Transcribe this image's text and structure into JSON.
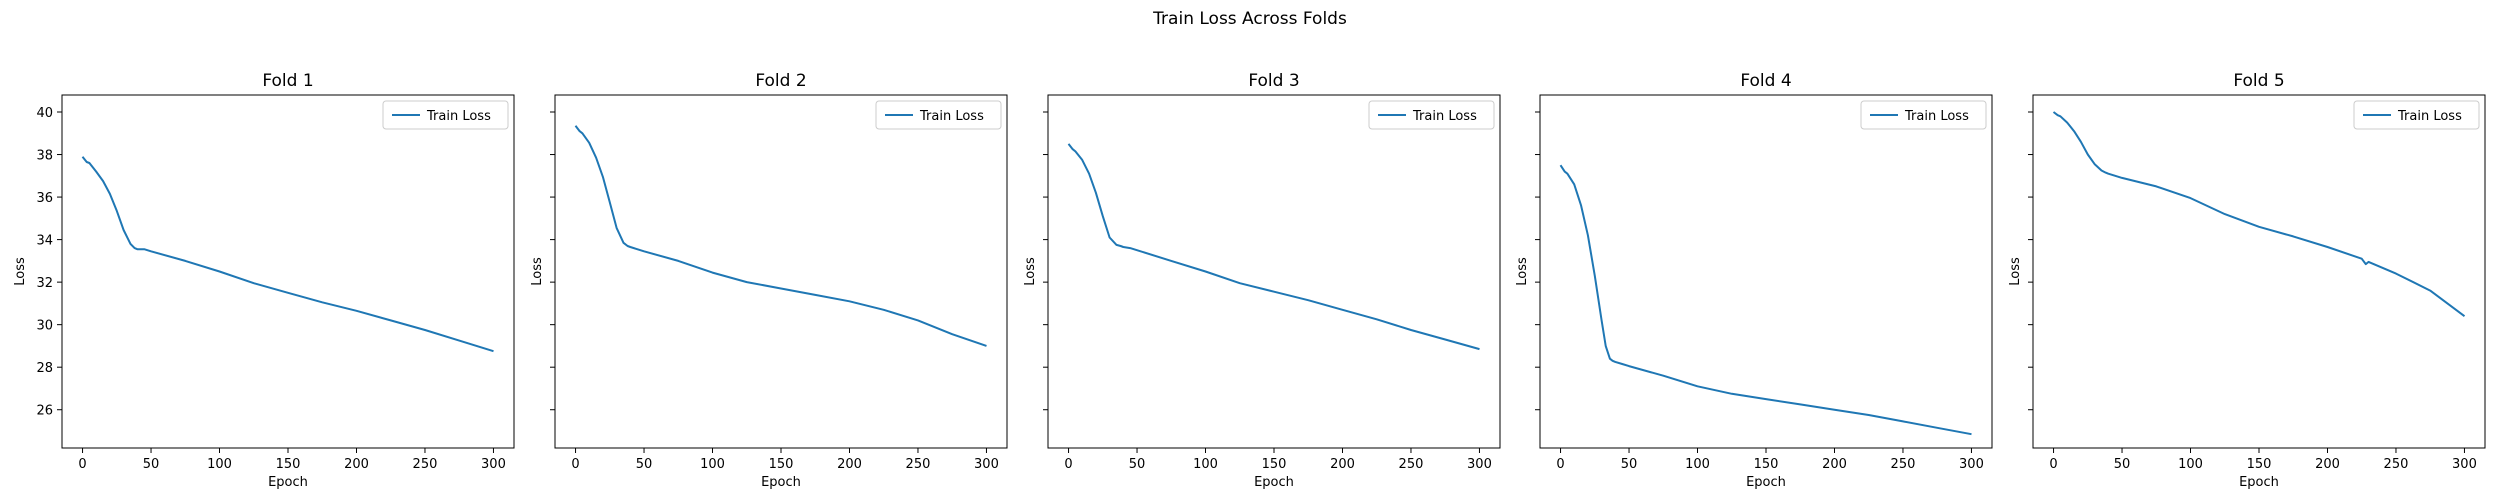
{
  "figure": {
    "suptitle": "Train Loss Across Folds"
  },
  "chart_data": [
    {
      "type": "line",
      "title": "Fold 1",
      "xlabel": "Epoch",
      "ylabel": "Loss",
      "xlim": [
        -15,
        315
      ],
      "ylim": [
        24.2,
        40.8
      ],
      "xticks": [
        0,
        50,
        100,
        150,
        200,
        250,
        300
      ],
      "yticks": [
        26,
        28,
        30,
        32,
        34,
        36,
        38,
        40
      ],
      "legend": "upper right",
      "grid": false,
      "series": [
        {
          "name": "Train Loss",
          "color": "#1f77b4",
          "x": [
            0,
            3,
            5,
            10,
            15,
            20,
            25,
            30,
            35,
            38,
            40,
            45,
            50,
            75,
            100,
            125,
            150,
            175,
            200,
            225,
            250,
            275,
            300
          ],
          "y": [
            37.9,
            37.65,
            37.6,
            37.2,
            36.75,
            36.15,
            35.35,
            34.45,
            33.8,
            33.6,
            33.55,
            33.55,
            33.45,
            33.0,
            32.5,
            31.95,
            31.5,
            31.05,
            30.65,
            30.2,
            29.75,
            29.25,
            28.75
          ]
        }
      ]
    },
    {
      "type": "line",
      "title": "Fold 2",
      "xlabel": "Epoch",
      "ylabel": "Loss",
      "xlim": [
        -15,
        315
      ],
      "ylim": [
        24.2,
        40.8
      ],
      "xticks": [
        0,
        50,
        100,
        150,
        200,
        250,
        300
      ],
      "yticks": [
        26,
        28,
        30,
        32,
        34,
        36,
        38,
        40
      ],
      "legend": "upper right",
      "grid": false,
      "series": [
        {
          "name": "Train Loss",
          "color": "#1f77b4",
          "x": [
            0,
            3,
            5,
            10,
            15,
            20,
            25,
            30,
            35,
            38,
            40,
            45,
            50,
            75,
            100,
            125,
            150,
            175,
            200,
            225,
            250,
            275,
            300
          ],
          "y": [
            39.35,
            39.1,
            39.0,
            38.55,
            37.85,
            36.95,
            35.75,
            34.55,
            33.85,
            33.7,
            33.65,
            33.55,
            33.45,
            33.0,
            32.45,
            32.0,
            31.7,
            31.4,
            31.1,
            30.7,
            30.2,
            29.55,
            29.0
          ]
        }
      ]
    },
    {
      "type": "line",
      "title": "Fold 3",
      "xlabel": "Epoch",
      "ylabel": "Loss",
      "xlim": [
        -15,
        315
      ],
      "ylim": [
        24.2,
        40.8
      ],
      "xticks": [
        0,
        50,
        100,
        150,
        200,
        250,
        300
      ],
      "yticks": [
        26,
        28,
        30,
        32,
        34,
        36,
        38,
        40
      ],
      "legend": "upper right",
      "grid": false,
      "series": [
        {
          "name": "Train Loss",
          "color": "#1f77b4",
          "x": [
            0,
            3,
            5,
            10,
            15,
            20,
            25,
            30,
            35,
            38,
            40,
            45,
            50,
            75,
            100,
            125,
            150,
            175,
            200,
            225,
            250,
            275,
            300
          ],
          "y": [
            38.5,
            38.25,
            38.15,
            37.75,
            37.1,
            36.2,
            35.1,
            34.1,
            33.75,
            33.7,
            33.65,
            33.6,
            33.5,
            33.0,
            32.5,
            31.95,
            31.55,
            31.15,
            30.7,
            30.25,
            29.75,
            29.3,
            28.85
          ]
        }
      ]
    },
    {
      "type": "line",
      "title": "Fold 4",
      "xlabel": "Epoch",
      "ylabel": "Loss",
      "xlim": [
        -15,
        315
      ],
      "ylim": [
        24.2,
        40.8
      ],
      "xticks": [
        0,
        50,
        100,
        150,
        200,
        250,
        300
      ],
      "yticks": [
        26,
        28,
        30,
        32,
        34,
        36,
        38,
        40
      ],
      "legend": "upper right",
      "grid": false,
      "series": [
        {
          "name": "Train Loss",
          "color": "#1f77b4",
          "x": [
            0,
            3,
            5,
            10,
            15,
            20,
            25,
            30,
            33,
            36,
            38,
            40,
            45,
            50,
            75,
            100,
            125,
            150,
            175,
            200,
            225,
            250,
            275,
            300
          ],
          "y": [
            37.5,
            37.2,
            37.1,
            36.6,
            35.6,
            34.2,
            32.3,
            30.2,
            29.0,
            28.4,
            28.3,
            28.25,
            28.15,
            28.05,
            27.6,
            27.1,
            26.75,
            26.5,
            26.25,
            26.0,
            25.75,
            25.45,
            25.15,
            24.85
          ]
        }
      ]
    },
    {
      "type": "line",
      "title": "Fold 5",
      "xlabel": "Epoch",
      "ylabel": "Loss",
      "xlim": [
        -15,
        315
      ],
      "ylim": [
        24.2,
        40.8
      ],
      "xticks": [
        0,
        50,
        100,
        150,
        200,
        250,
        300
      ],
      "yticks": [
        26,
        28,
        30,
        32,
        34,
        36,
        38,
        40
      ],
      "legend": "upper right",
      "grid": false,
      "series": [
        {
          "name": "Train Loss",
          "color": "#1f77b4",
          "x": [
            0,
            3,
            5,
            10,
            15,
            20,
            25,
            30,
            35,
            38,
            40,
            45,
            50,
            75,
            100,
            125,
            150,
            175,
            200,
            225,
            228,
            230,
            250,
            275,
            300
          ],
          "y": [
            40.0,
            39.85,
            39.8,
            39.5,
            39.1,
            38.6,
            38.0,
            37.55,
            37.25,
            37.15,
            37.1,
            37.0,
            36.9,
            36.5,
            35.95,
            35.2,
            34.6,
            34.15,
            33.65,
            33.1,
            32.85,
            32.95,
            32.4,
            31.6,
            30.4
          ]
        }
      ]
    }
  ]
}
